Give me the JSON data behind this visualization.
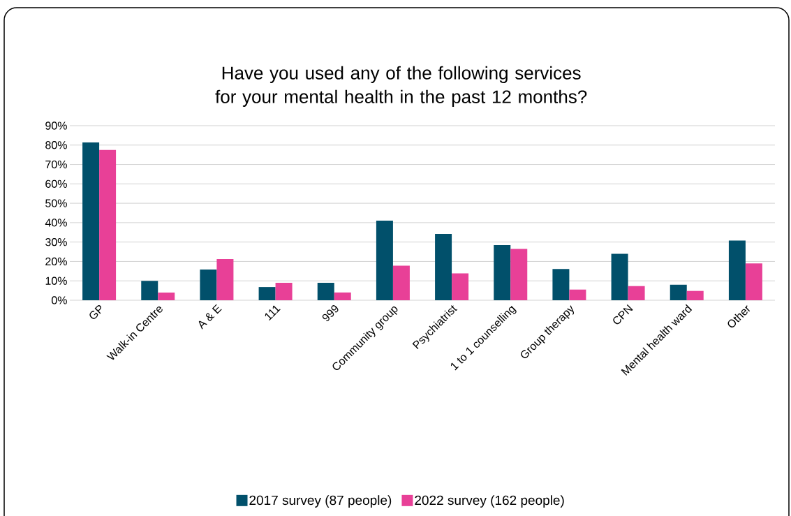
{
  "chart_data": {
    "type": "bar",
    "title": "Have you used any of the following services for your mental health in the past 12 months?",
    "categories": [
      "GP",
      "Walk-in Centre",
      "A & E",
      "111",
      "999",
      "Community group",
      "Psychiatrist",
      "1 to 1 counselling",
      "Group therapy",
      "CPN",
      "Mental health ward",
      "Other"
    ],
    "series": [
      {
        "name": "2017 survey (87 people)",
        "color": "#01506b",
        "values": [
          81.4,
          10.0,
          15.8,
          6.8,
          9.0,
          41.0,
          34.2,
          28.4,
          16.1,
          23.9,
          8.0,
          30.8
        ]
      },
      {
        "name": "2022 survey (162 people)",
        "color": "#e84097",
        "values": [
          77.5,
          4.0,
          21.2,
          9.0,
          4.0,
          17.8,
          13.9,
          26.5,
          5.5,
          7.3,
          4.8,
          19.0
        ]
      }
    ],
    "ylim": [
      0,
      90
    ],
    "yticks": [
      {
        "value": 0,
        "label": "0%"
      },
      {
        "value": 10,
        "label": "10%"
      },
      {
        "value": 20,
        "label": "20%"
      },
      {
        "value": 30,
        "label": "30%"
      },
      {
        "value": 40,
        "label": "40%"
      },
      {
        "value": 50,
        "label": "50%"
      },
      {
        "value": 60,
        "label": "60%"
      },
      {
        "value": 70,
        "label": "70%"
      },
      {
        "value": 80,
        "label": "80%"
      },
      {
        "value": 90,
        "label": "90%"
      }
    ],
    "grid": "y",
    "legend": "bottom"
  }
}
